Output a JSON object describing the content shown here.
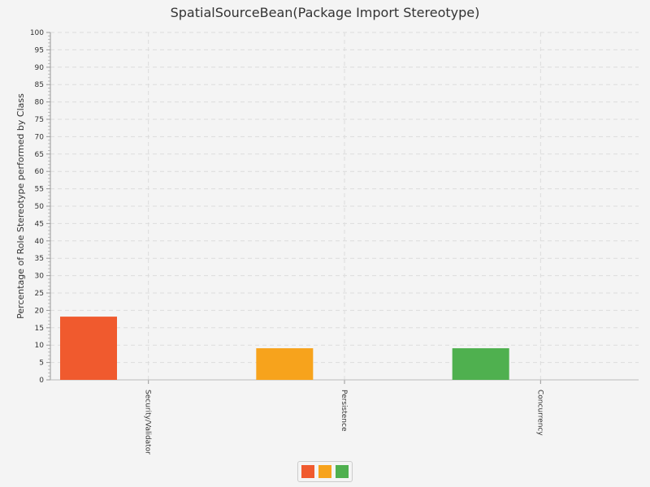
{
  "chart_data": {
    "type": "bar",
    "title": "SpatialSourceBean(Package Import Stereotype)",
    "ylabel": "Percentage of Role Stereotype performed by Class",
    "xlabel": "",
    "ylim": [
      0,
      100
    ],
    "y_tick_step": 5,
    "categories": [
      "Security/Validator",
      "Persistence",
      "Concurrency"
    ],
    "values": [
      18.2,
      9.1,
      9.1
    ],
    "colors": [
      "#f05a2e",
      "#f7a31c",
      "#4fb04f"
    ],
    "grid": true,
    "legend_placement": "bottom-center"
  }
}
